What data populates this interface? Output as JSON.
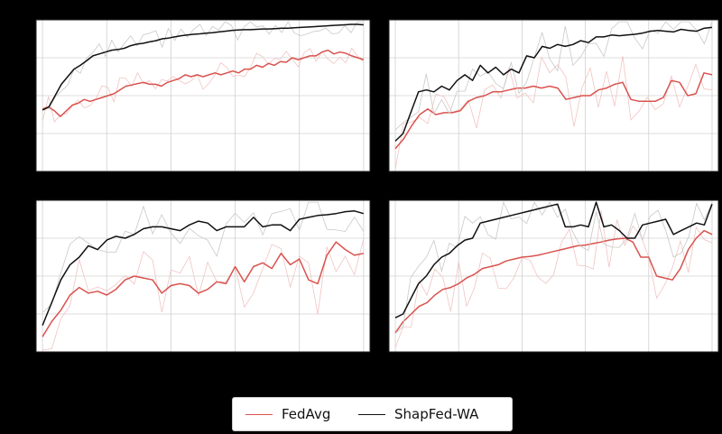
{
  "colors": {
    "fedavg": "#d9534f",
    "shapfed": "#111111",
    "raw": "#c8c8c8",
    "grid": "#d0d0d0"
  },
  "legend": {
    "placement": "bottom-center",
    "entries": [
      {
        "name": "FedAvg",
        "color": "#d9534f"
      },
      {
        "name": "ShapFed-WA",
        "color": "#111111"
      }
    ]
  },
  "chart_data": [
    {
      "type": "line",
      "grid": true,
      "xlim": [
        -1,
        51
      ],
      "ylim": [
        0,
        4
      ],
      "series": [
        {
          "name": "FedAvg",
          "values": [
            1.65,
            1.7,
            1.6,
            1.45,
            1.6,
            1.75,
            1.8,
            1.9,
            1.85,
            1.9,
            1.95,
            2.0,
            2.05,
            2.15,
            2.25,
            2.28,
            2.32,
            2.35,
            2.3,
            2.3,
            2.25,
            2.35,
            2.4,
            2.45,
            2.55,
            2.5,
            2.55,
            2.5,
            2.55,
            2.6,
            2.55,
            2.6,
            2.65,
            2.6,
            2.7,
            2.7,
            2.8,
            2.75,
            2.85,
            2.8,
            2.9,
            2.88,
            3.0,
            2.95,
            3.0,
            3.05,
            3.05,
            3.15,
            3.2,
            3.1,
            3.15,
            3.12,
            3.05,
            3.0,
            2.95
          ]
        },
        {
          "name": "ShapFed-WA",
          "values": [
            1.62,
            1.7,
            2.0,
            2.3,
            2.5,
            2.7,
            2.8,
            2.92,
            3.05,
            3.1,
            3.15,
            3.2,
            3.22,
            3.25,
            3.32,
            3.36,
            3.38,
            3.42,
            3.45,
            3.5,
            3.52,
            3.55,
            3.58,
            3.6,
            3.62,
            3.63,
            3.65,
            3.66,
            3.68,
            3.7,
            3.72,
            3.73,
            3.74,
            3.74,
            3.75,
            3.76,
            3.76,
            3.77,
            3.78,
            3.78,
            3.79,
            3.8,
            3.81,
            3.82,
            3.83,
            3.84,
            3.85,
            3.86,
            3.87,
            3.88,
            3.88,
            3.87
          ]
        }
      ]
    },
    {
      "type": "line",
      "grid": true,
      "xlim": [
        -1,
        51
      ],
      "ylim": [
        0,
        4
      ],
      "series": [
        {
          "name": "FedAvg",
          "values": [
            0.6,
            0.85,
            1.2,
            1.5,
            1.65,
            1.5,
            1.55,
            1.55,
            1.6,
            1.85,
            1.95,
            2.0,
            2.1,
            2.1,
            2.15,
            2.2,
            2.2,
            2.25,
            2.2,
            2.25,
            2.2,
            1.9,
            1.95,
            2.0,
            2.0,
            2.15,
            2.2,
            2.3,
            2.35,
            1.9,
            1.85,
            1.85,
            1.85,
            1.95,
            2.4,
            2.35,
            2.0,
            2.05,
            2.6,
            2.55
          ]
        },
        {
          "name": "ShapFed-WA",
          "values": [
            0.8,
            1.0,
            1.55,
            2.1,
            2.15,
            2.1,
            2.25,
            2.15,
            2.4,
            2.55,
            2.4,
            2.8,
            2.6,
            2.75,
            2.55,
            2.7,
            2.6,
            3.05,
            3.0,
            3.3,
            3.25,
            3.35,
            3.3,
            3.35,
            3.45,
            3.4,
            3.55,
            3.55,
            3.6,
            3.58,
            3.6,
            3.62,
            3.65,
            3.7,
            3.72,
            3.7,
            3.68,
            3.75,
            3.72,
            3.7,
            3.78,
            3.8
          ]
        }
      ]
    },
    {
      "type": "line",
      "grid": true,
      "xlim": [
        -1,
        51
      ],
      "ylim": [
        0,
        4
      ],
      "series": [
        {
          "name": "FedAvg",
          "values": [
            0.4,
            0.8,
            1.1,
            1.5,
            1.7,
            1.55,
            1.6,
            1.5,
            1.65,
            1.9,
            2.0,
            1.95,
            1.9,
            1.55,
            1.75,
            1.8,
            1.75,
            1.55,
            1.65,
            1.85,
            1.8,
            2.25,
            1.85,
            2.25,
            2.35,
            2.2,
            2.6,
            2.3,
            2.45,
            1.9,
            1.8,
            2.55,
            2.9,
            2.7,
            2.55,
            2.6
          ]
        },
        {
          "name": "ShapFed-WA",
          "values": [
            0.7,
            1.3,
            1.9,
            2.3,
            2.5,
            2.8,
            2.7,
            2.95,
            3.05,
            3.0,
            3.1,
            3.25,
            3.3,
            3.3,
            3.25,
            3.2,
            3.35,
            3.45,
            3.4,
            3.2,
            3.3,
            3.3,
            3.3,
            3.55,
            3.3,
            3.35,
            3.35,
            3.2,
            3.5,
            3.55,
            3.6,
            3.62,
            3.65,
            3.7,
            3.72,
            3.65
          ]
        }
      ]
    },
    {
      "type": "line",
      "grid": true,
      "xlim": [
        -1,
        51
      ],
      "ylim": [
        0,
        4
      ],
      "series": [
        {
          "name": "FedAvg",
          "values": [
            0.5,
            0.8,
            1.0,
            1.2,
            1.3,
            1.5,
            1.65,
            1.7,
            1.8,
            1.95,
            2.05,
            2.2,
            2.25,
            2.3,
            2.4,
            2.45,
            2.5,
            2.52,
            2.55,
            2.6,
            2.65,
            2.7,
            2.75,
            2.8,
            2.82,
            2.86,
            2.9,
            2.95,
            2.98,
            3.0,
            2.9,
            2.5,
            2.5,
            2.0,
            1.95,
            1.9,
            2.2,
            2.7,
            3.0,
            3.2,
            3.1
          ]
        },
        {
          "name": "ShapFed-WA",
          "values": [
            0.9,
            1.0,
            1.4,
            1.8,
            2.0,
            2.3,
            2.5,
            2.6,
            2.8,
            2.95,
            3.0,
            3.4,
            3.45,
            3.5,
            3.55,
            3.6,
            3.65,
            3.7,
            3.75,
            3.8,
            3.85,
            3.9,
            3.3,
            3.3,
            3.35,
            3.3,
            3.95,
            3.3,
            3.35,
            3.2,
            3.0,
            3.0,
            3.35,
            3.4,
            3.45,
            3.5,
            3.1,
            3.2,
            3.3,
            3.4,
            3.35,
            3.9
          ]
        }
      ]
    }
  ]
}
